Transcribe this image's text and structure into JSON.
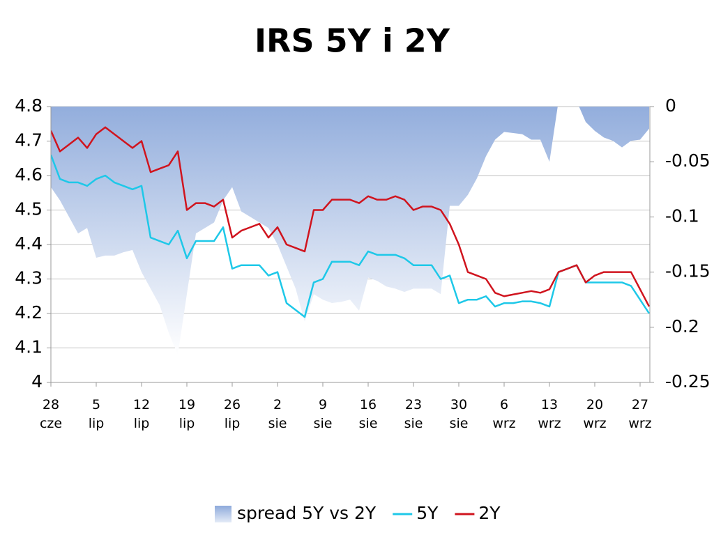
{
  "chart_data": {
    "type": "line",
    "title": "IRS 5Y i 2Y",
    "categories": [
      "28\ncze",
      null,
      null,
      null,
      null,
      "5\nlip",
      null,
      null,
      null,
      null,
      "12\nlip",
      null,
      null,
      null,
      null,
      "19\nlip",
      null,
      null,
      null,
      null,
      "26\nlip",
      null,
      null,
      null,
      null,
      "2\nsie",
      null,
      null,
      null,
      null,
      "9\nsie",
      null,
      null,
      null,
      null,
      "16\nsie",
      null,
      null,
      null,
      null,
      "23\nsie",
      null,
      null,
      null,
      null,
      "30\nsie",
      null,
      null,
      null,
      null,
      "6\nwrz",
      null,
      null,
      null,
      null,
      "13\nwrz",
      null,
      null,
      null,
      null,
      "20\nwrz",
      null,
      null,
      null,
      null,
      "27\nwrz",
      null
    ],
    "series": [
      {
        "name": "spread 5Y vs 2Y",
        "type": "area",
        "axis": "y2",
        "color": "#8eaadb",
        "values": [
          -0.073,
          -0.085,
          -0.1,
          -0.115,
          -0.11,
          -0.137,
          -0.135,
          -0.135,
          -0.132,
          -0.13,
          -0.15,
          -0.165,
          -0.18,
          -0.205,
          -0.225,
          -0.17,
          -0.115,
          -0.11,
          -0.105,
          -0.085,
          -0.073,
          -0.095,
          -0.1,
          -0.105,
          -0.11,
          -0.125,
          -0.145,
          -0.165,
          -0.195,
          -0.17,
          -0.175,
          -0.178,
          -0.177,
          -0.175,
          -0.185,
          -0.155,
          -0.158,
          -0.163,
          -0.165,
          -0.168,
          -0.165,
          -0.165,
          -0.165,
          -0.17,
          -0.09,
          -0.09,
          -0.08,
          -0.065,
          -0.045,
          -0.03,
          -0.023,
          -0.024,
          -0.025,
          -0.03,
          -0.03,
          -0.05,
          0.005,
          0.01,
          0.005,
          -0.014,
          -0.022,
          -0.028,
          -0.031,
          -0.037,
          -0.031,
          -0.03,
          -0.02
        ]
      },
      {
        "name": "5Y",
        "type": "line",
        "color": "#1ec8e8",
        "values": [
          4.66,
          4.59,
          4.58,
          4.58,
          4.57,
          4.59,
          4.6,
          4.58,
          4.57,
          4.56,
          4.57,
          4.42,
          4.41,
          4.4,
          4.44,
          4.36,
          4.41,
          4.41,
          4.41,
          4.45,
          4.33,
          4.34,
          4.34,
          4.34,
          4.31,
          4.32,
          4.23,
          4.21,
          4.19,
          4.29,
          4.3,
          4.35,
          4.35,
          4.35,
          4.34,
          4.38,
          4.37,
          4.37,
          4.37,
          4.36,
          4.34,
          4.34,
          4.34,
          4.3,
          4.31,
          4.23,
          4.24,
          4.24,
          4.25,
          4.22,
          4.23,
          4.23,
          4.235,
          4.235,
          4.23,
          4.22,
          4.32,
          4.33,
          4.34,
          4.29,
          4.29,
          4.29,
          4.29,
          4.29,
          4.28,
          4.24,
          4.2
        ]
      },
      {
        "name": "2Y",
        "type": "line",
        "color": "#d0141e",
        "values": [
          4.73,
          4.67,
          4.69,
          4.71,
          4.68,
          4.72,
          4.74,
          4.72,
          4.7,
          4.68,
          4.7,
          4.61,
          4.62,
          4.63,
          4.67,
          4.5,
          4.52,
          4.52,
          4.51,
          4.53,
          4.42,
          4.44,
          4.45,
          4.46,
          4.42,
          4.45,
          4.4,
          4.39,
          4.38,
          4.5,
          4.5,
          4.53,
          4.53,
          4.53,
          4.52,
          4.54,
          4.53,
          4.53,
          4.54,
          4.53,
          4.5,
          4.51,
          4.51,
          4.5,
          4.46,
          4.4,
          4.32,
          4.31,
          4.3,
          4.26,
          4.25,
          4.255,
          4.26,
          4.265,
          4.26,
          4.27,
          4.32,
          4.33,
          4.34,
          4.29,
          4.31,
          4.32,
          4.32,
          4.32,
          4.32,
          4.27,
          4.22
        ]
      }
    ],
    "ylim": [
      4,
      4.8
    ],
    "yticks": [
      4,
      4.1,
      4.2,
      4.3,
      4.4,
      4.5,
      4.6,
      4.7,
      4.8
    ],
    "y2lim": [
      -0.25,
      0
    ],
    "y2ticks": [
      -0.25,
      -0.2,
      -0.15,
      -0.1,
      -0.05,
      0
    ],
    "grid": true,
    "legend": "bottom"
  }
}
